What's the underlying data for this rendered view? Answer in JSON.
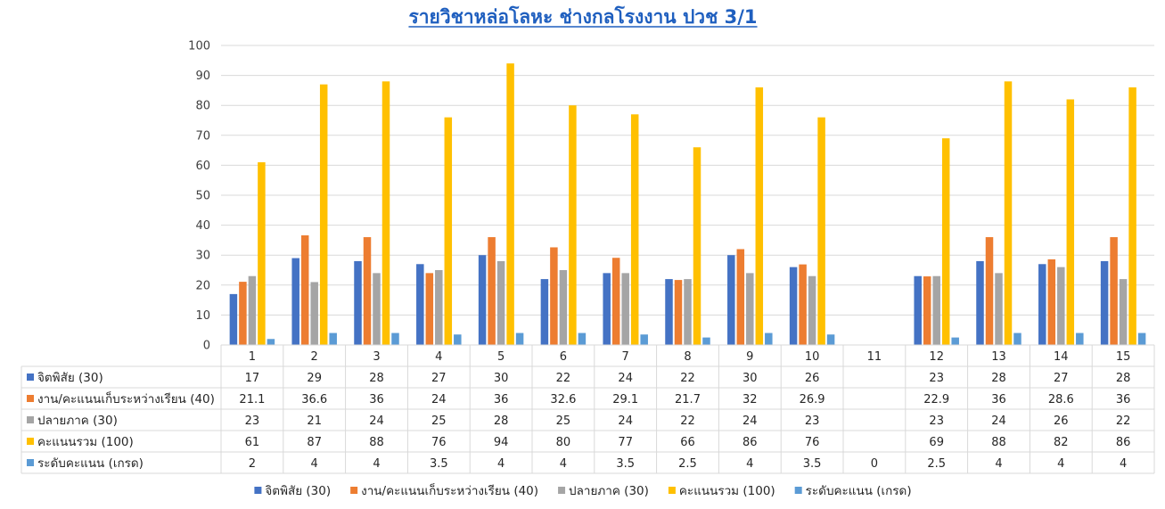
{
  "chart_data": {
    "type": "bar",
    "title": "รายวิชาหล่อโลหะ ช่างกลโรงงาน ปวช 3/1",
    "categories": [
      "1",
      "2",
      "3",
      "4",
      "5",
      "6",
      "7",
      "8",
      "9",
      "10",
      "11",
      "12",
      "13",
      "14",
      "15"
    ],
    "ylim": [
      0,
      100
    ],
    "yticks": [
      "0",
      "10",
      "20",
      "30",
      "40",
      "50",
      "60",
      "70",
      "80",
      "90",
      "100"
    ],
    "grid": true,
    "legend_position": "bottom",
    "series": [
      {
        "name": "จิตพิสัย (30)",
        "color": "#4472c4",
        "values": [
          17,
          29,
          28,
          27,
          30,
          22,
          24,
          22,
          30,
          26,
          null,
          23,
          28,
          27,
          28
        ],
        "labels": [
          "17",
          "29",
          "28",
          "27",
          "30",
          "22",
          "24",
          "22",
          "30",
          "26",
          "",
          "23",
          "28",
          "27",
          "28"
        ]
      },
      {
        "name": "งาน/คะแนนเก็บระหว่างเรียน (40)",
        "color": "#ed7d31",
        "values": [
          21.1,
          36.6,
          36,
          24,
          36,
          32.6,
          29.1,
          21.7,
          32,
          26.9,
          null,
          22.9,
          36,
          28.6,
          36
        ],
        "labels": [
          "21.1",
          "36.6",
          "36",
          "24",
          "36",
          "32.6",
          "29.1",
          "21.7",
          "32",
          "26.9",
          "",
          "22.9",
          "36",
          "28.6",
          "36"
        ]
      },
      {
        "name": "ปลายภาค (30)",
        "color": "#a5a5a5",
        "values": [
          23,
          21,
          24,
          25,
          28,
          25,
          24,
          22,
          24,
          23,
          null,
          23,
          24,
          26,
          22
        ],
        "labels": [
          "23",
          "21",
          "24",
          "25",
          "28",
          "25",
          "24",
          "22",
          "24",
          "23",
          "",
          "23",
          "24",
          "26",
          "22"
        ]
      },
      {
        "name": "คะแนนรวม (100)",
        "color": "#ffc000",
        "values": [
          61,
          87,
          88,
          76,
          94,
          80,
          77,
          66,
          86,
          76,
          null,
          69,
          88,
          82,
          86
        ],
        "labels": [
          "61",
          "87",
          "88",
          "76",
          "94",
          "80",
          "77",
          "66",
          "86",
          "76",
          "",
          "69",
          "88",
          "82",
          "86"
        ]
      },
      {
        "name": "ระดับคะแนน (เกรด)",
        "color": "#5b9bd5",
        "values": [
          2,
          4,
          4,
          3.5,
          4,
          4,
          3.5,
          2.5,
          4,
          3.5,
          0,
          2.5,
          4,
          4,
          4
        ],
        "labels": [
          "2",
          "4",
          "4",
          "3.5",
          "4",
          "4",
          "3.5",
          "2.5",
          "4",
          "3.5",
          "0",
          "2.5",
          "4",
          "4",
          "4"
        ]
      }
    ]
  }
}
